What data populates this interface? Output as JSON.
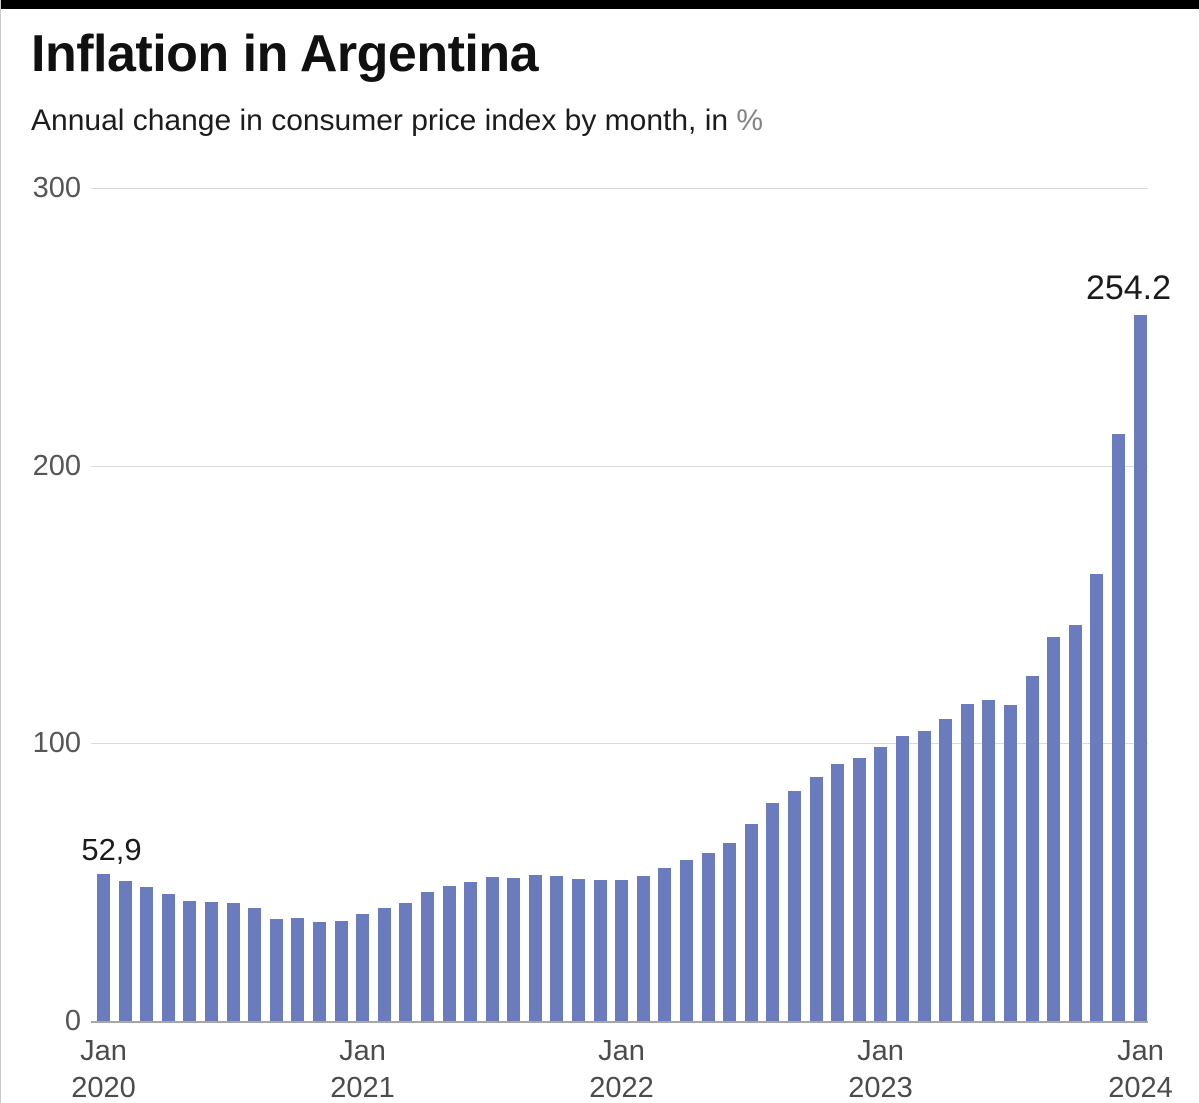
{
  "header": {
    "title": "Inflation in Argentina",
    "subtitle_text": "Annual change in consumer price index by month, in ",
    "subtitle_unit": "%"
  },
  "chart_data": {
    "type": "bar",
    "title": "Inflation in Argentina",
    "subtitle": "Annual change in consumer price index by month, in %",
    "unit": "%",
    "bar_color": "#6a7bbe",
    "grid": "horizontal",
    "legend": "none",
    "ylim": [
      0,
      300
    ],
    "yticks": [
      0,
      100,
      200,
      300
    ],
    "categories": [
      "Jan 2020",
      "Feb 2020",
      "Mar 2020",
      "Apr 2020",
      "May 2020",
      "Jun 2020",
      "Jul 2020",
      "Aug 2020",
      "Sep 2020",
      "Oct 2020",
      "Nov 2020",
      "Dec 2020",
      "Jan 2021",
      "Feb 2021",
      "Mar 2021",
      "Apr 2021",
      "May 2021",
      "Jun 2021",
      "Jul 2021",
      "Aug 2021",
      "Sep 2021",
      "Oct 2021",
      "Nov 2021",
      "Dec 2021",
      "Jan 2022",
      "Feb 2022",
      "Mar 2022",
      "Apr 2022",
      "May 2022",
      "Jun 2022",
      "Jul 2022",
      "Aug 2022",
      "Sep 2022",
      "Oct 2022",
      "Nov 2022",
      "Dec 2022",
      "Jan 2023",
      "Feb 2023",
      "Mar 2023",
      "Apr 2023",
      "May 2023",
      "Jun 2023",
      "Jul 2023",
      "Aug 2023",
      "Sep 2023",
      "Oct 2023",
      "Nov 2023",
      "Dec 2023",
      "Jan 2024"
    ],
    "values": [
      52.9,
      50.3,
      48.4,
      45.6,
      43.4,
      42.8,
      42.4,
      40.7,
      36.6,
      37.2,
      35.8,
      36.1,
      38.5,
      40.7,
      42.6,
      46.3,
      48.8,
      50.2,
      51.8,
      51.4,
      52.5,
      52.1,
      51.2,
      50.9,
      50.7,
      52.3,
      55.1,
      58.0,
      60.7,
      64.0,
      71.0,
      78.5,
      83.0,
      88.0,
      92.4,
      94.8,
      98.8,
      102.5,
      104.3,
      108.8,
      114.2,
      115.6,
      113.8,
      124.4,
      138.3,
      142.7,
      160.9,
      211.4,
      254.2
    ],
    "x_tick_labels": [
      {
        "index": 0,
        "line1": "Jan",
        "line2": "2020"
      },
      {
        "index": 12,
        "line1": "Jan",
        "line2": "2021"
      },
      {
        "index": 24,
        "line1": "Jan",
        "line2": "2022"
      },
      {
        "index": 36,
        "line1": "Jan",
        "line2": "2023"
      },
      {
        "index": 48,
        "line1": "Jan",
        "line2": "2024"
      }
    ],
    "annotations": [
      {
        "index": 0,
        "label": "52,9"
      },
      {
        "index": 48,
        "label": "254.2"
      }
    ]
  }
}
